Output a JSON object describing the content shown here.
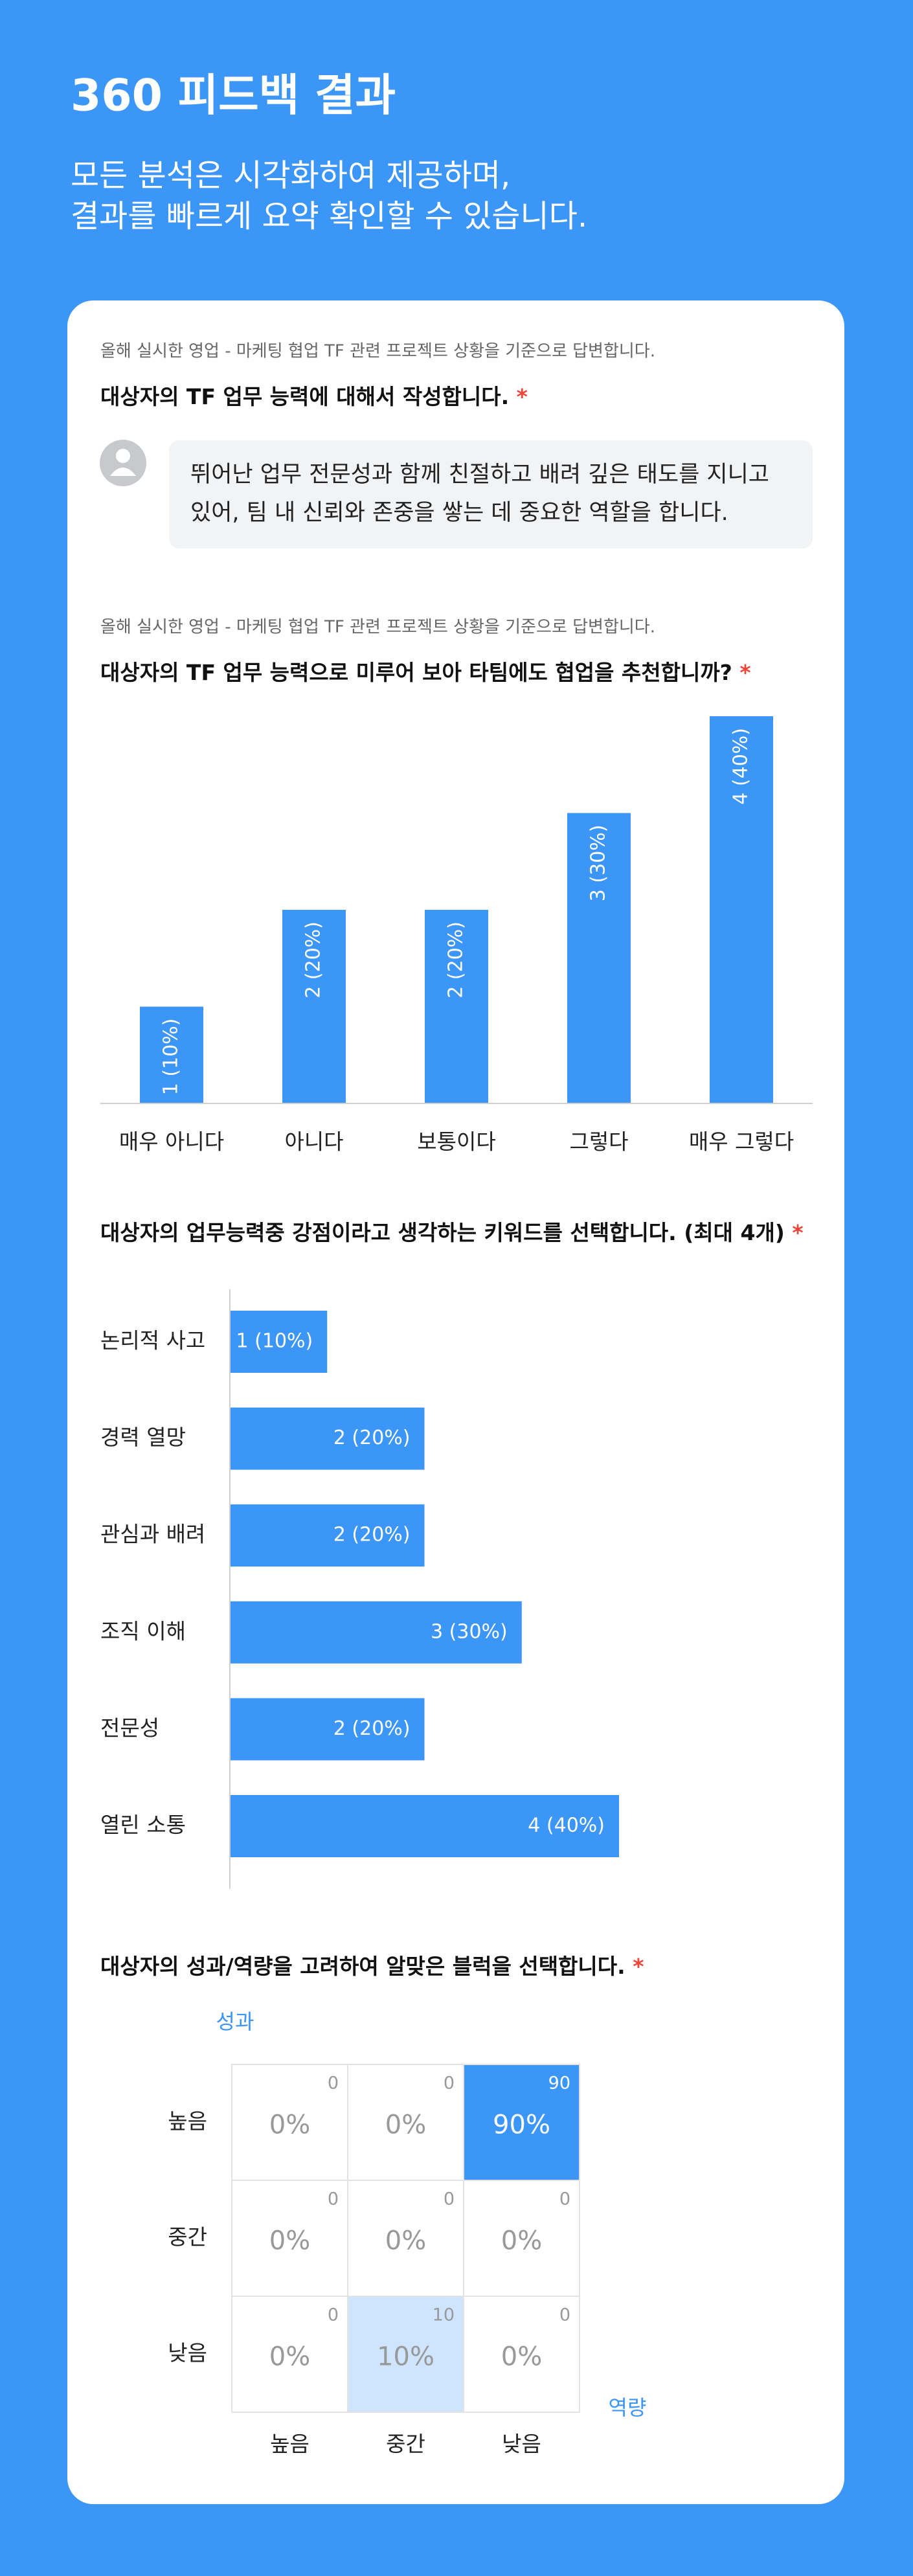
{
  "header": {
    "title": "360 피드백 결과",
    "subtitle_lines": [
      "모든 분석은 시각화하여 제공하며,",
      "결과를 빠르게 요약 확인할 수 있습니다."
    ]
  },
  "sections": [
    {
      "context": "올해 실시한 영업 - 마케팅 협업 TF 관련 프로젝트 상황을 기준으로 답변합니다.",
      "question": "대상자의 TF 업무 능력에 대해서 작성합니다.",
      "required_mark": "*",
      "answer": "뛰어난 업무 전문성과 함께 친절하고 배려 깊은 태도를 지니고 있어, 팀 내 신뢰와 존중을 쌓는 데 중요한 역할을 합니다."
    }
  ],
  "chart_data": [
    {
      "type": "bar",
      "context": "올해 실시한 영업 - 마케팅 협업 TF 관련 프로젝트 상황을 기준으로 답변합니다.",
      "title": "대상자의 TF 업무 능력으로 미루어 보아 타팀에도 협업을 추천합니까?",
      "required_mark": "*",
      "categories": [
        "매우 아니다",
        "아니다",
        "보통이다",
        "그렇다",
        "매우 그렇다"
      ],
      "values": [
        1,
        2,
        2,
        3,
        4
      ],
      "value_labels": [
        "1 (10%)",
        "2 (20%)",
        "2 (20%)",
        "3 (30%)",
        "4 (40%)"
      ],
      "color": "#3b96f7"
    },
    {
      "type": "hbar",
      "title": "대상자의 업무능력중 강점이라고 생각하는 키워드를 선택합니다. (최대 4개)",
      "required_mark": "*",
      "categories": [
        "논리적 사고",
        "경력 열망",
        "관심과 배려",
        "조직 이해",
        "전문성",
        "열린 소통"
      ],
      "values": [
        1,
        2,
        2,
        3,
        2,
        4
      ],
      "value_labels": [
        "1 (10%)",
        "2 (20%)",
        "2 (20%)",
        "3 (30%)",
        "2 (20%)",
        "4 (40%)"
      ],
      "color": "#3b96f7"
    },
    {
      "type": "heatmap",
      "title": "대상자의 성과/역량을 고려하여 알맞은 블럭을 선택합니다.",
      "required_mark": "*",
      "y_label": "성과",
      "x_label": "역량",
      "rows": [
        "높음",
        "중간",
        "낮음"
      ],
      "columns": [
        "높음",
        "중간",
        "낮음"
      ],
      "values": [
        [
          0,
          0,
          90
        ],
        [
          0,
          0,
          0
        ],
        [
          0,
          10,
          0
        ]
      ],
      "value_labels": [
        [
          "0%",
          "0%",
          "90%"
        ],
        [
          "0%",
          "0%",
          "0%"
        ],
        [
          "0%",
          "10%",
          "0%"
        ]
      ],
      "color": "#3b96f7"
    }
  ]
}
